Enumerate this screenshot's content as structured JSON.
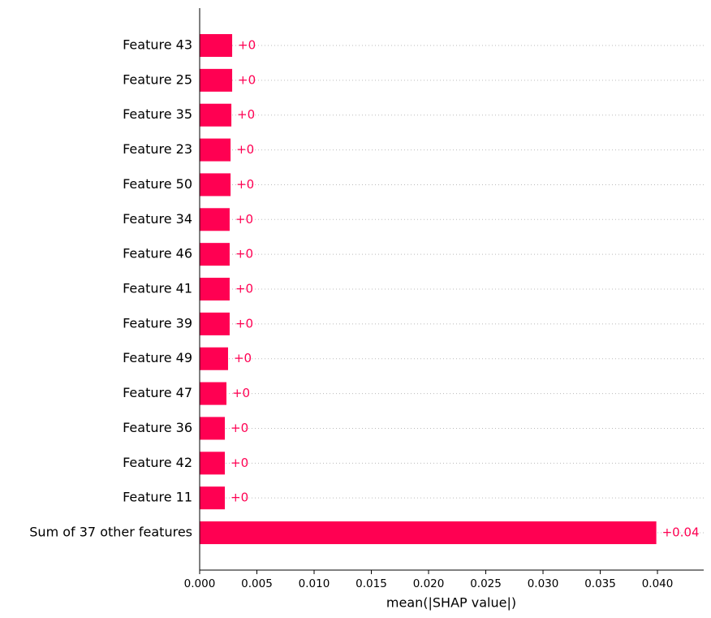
{
  "chart_data": {
    "type": "barh",
    "xlabel": "mean(|SHAP value|)",
    "categories": [
      "Feature 43",
      "Feature 25",
      "Feature 35",
      "Feature 23",
      "Feature 50",
      "Feature 34",
      "Feature 46",
      "Feature 41",
      "Feature 39",
      "Feature 49",
      "Feature 47",
      "Feature 36",
      "Feature 42",
      "Feature 11",
      "Sum of 37 other features"
    ],
    "values": [
      0.00284,
      0.00284,
      0.00277,
      0.0027,
      0.0027,
      0.00262,
      0.00262,
      0.00262,
      0.00262,
      0.00248,
      0.00234,
      0.0022,
      0.0022,
      0.0022,
      0.0399
    ],
    "value_labels": [
      "+0",
      "+0",
      "+0",
      "+0",
      "+0",
      "+0",
      "+0",
      "+0",
      "+0",
      "+0",
      "+0",
      "+0",
      "+0",
      "+0",
      "+0.04"
    ],
    "color": "#ff0052",
    "xlim": [
      0,
      0.04404
    ],
    "xticks": [
      {
        "value": 0,
        "label": "0.000"
      },
      0.005,
      {
        "value": 0.01,
        "label": "0.010"
      },
      0.015,
      {
        "value": 0.02,
        "label": "0.020"
      },
      0.025,
      {
        "value": 0.03,
        "label": "0.030"
      },
      0.035,
      {
        "value": 0.04,
        "label": "0.040"
      }
    ],
    "grid": true
  }
}
